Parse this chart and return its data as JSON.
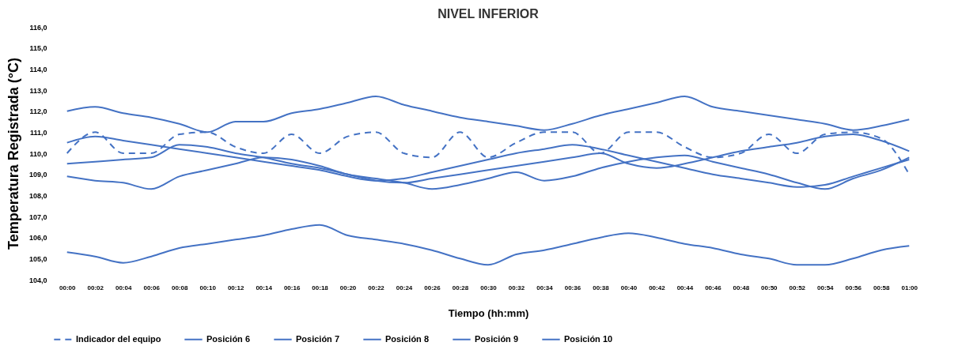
{
  "chart_data": {
    "type": "line",
    "title": "NIVEL INFERIOR",
    "xlabel": "Tiempo (hh:mm)",
    "ylabel": "Temperatura Registrada (°C)",
    "categories": [
      "00:00",
      "00:02",
      "00:04",
      "00:06",
      "00:08",
      "00:10",
      "00:12",
      "00:14",
      "00:16",
      "00:18",
      "00:20",
      "00:22",
      "00:24",
      "00:26",
      "00:28",
      "00:30",
      "00:32",
      "00:34",
      "00:36",
      "00:38",
      "00:40",
      "00:42",
      "00:44",
      "00:46",
      "00:48",
      "00:50",
      "00:52",
      "00:54",
      "00:56",
      "00:58",
      "01:00"
    ],
    "ylim": [
      104,
      116
    ],
    "yticks": [
      {
        "value": 104,
        "label": "104,0"
      },
      {
        "value": 105,
        "label": "105,0"
      },
      {
        "value": 106,
        "label": "106,0"
      },
      {
        "value": 107,
        "label": "107,0"
      },
      {
        "value": 108,
        "label": "108,0"
      },
      {
        "value": 109,
        "label": "109,0"
      },
      {
        "value": 110,
        "label": "110,0"
      },
      {
        "value": 111,
        "label": "111,0"
      },
      {
        "value": 112,
        "label": "112,0"
      },
      {
        "value": 113,
        "label": "113,0"
      },
      {
        "value": 114,
        "label": "114,0"
      },
      {
        "value": 115,
        "label": "115,0"
      },
      {
        "value": 116,
        "label": "116,0"
      }
    ],
    "grid": false,
    "legend": "bottom",
    "marker": "none",
    "series": [
      {
        "name": "Indicador del equipo",
        "color": "#4472c4",
        "line_style": "dashed",
        "values": [
          110.0,
          111.0,
          110.0,
          110.0,
          110.9,
          111.0,
          110.3,
          110.0,
          110.9,
          110.0,
          110.8,
          111.0,
          110.0,
          109.8,
          111.0,
          109.8,
          110.5,
          111.0,
          111.0,
          110.0,
          111.0,
          111.0,
          110.3,
          109.8,
          110.0,
          110.9,
          110.0,
          110.9,
          111.0,
          110.7,
          109.0
        ]
      },
      {
        "name": "Posición 6",
        "color": "#4472c4",
        "line_style": "solid",
        "values": [
          112.0,
          112.2,
          111.9,
          111.7,
          111.4,
          111.0,
          111.5,
          111.5,
          111.9,
          112.1,
          112.4,
          112.7,
          112.3,
          112.0,
          111.7,
          111.5,
          111.3,
          111.1,
          111.4,
          111.8,
          112.1,
          112.4,
          112.7,
          112.2,
          112.0,
          111.8,
          111.6,
          111.4,
          111.1,
          111.3,
          111.6
        ]
      },
      {
        "name": "Posición 7",
        "color": "#4472c4",
        "line_style": "solid",
        "values": [
          105.3,
          105.1,
          104.8,
          105.1,
          105.5,
          105.7,
          105.9,
          106.1,
          106.4,
          106.6,
          106.1,
          105.9,
          105.7,
          105.4,
          105.0,
          104.7,
          105.2,
          105.4,
          105.7,
          106.0,
          106.2,
          106.0,
          105.7,
          105.5,
          105.2,
          105.0,
          104.7,
          104.7,
          105.0,
          105.4,
          105.6
        ]
      },
      {
        "name": "Posición 8",
        "color": "#4472c4",
        "line_style": "solid",
        "values": [
          110.5,
          110.8,
          110.6,
          110.4,
          110.2,
          110.0,
          109.8,
          109.6,
          109.4,
          109.2,
          108.9,
          108.7,
          108.8,
          109.1,
          109.4,
          109.7,
          110.0,
          110.2,
          110.4,
          110.2,
          109.9,
          109.6,
          109.3,
          109.0,
          108.8,
          108.6,
          108.4,
          108.5,
          108.9,
          109.3,
          109.7
        ]
      },
      {
        "name": "Posición 9",
        "color": "#4472c4",
        "line_style": "solid",
        "values": [
          108.9,
          108.7,
          108.6,
          108.3,
          108.9,
          109.2,
          109.5,
          109.8,
          109.7,
          109.4,
          109.0,
          108.8,
          108.6,
          108.3,
          108.5,
          108.8,
          109.1,
          108.7,
          108.9,
          109.3,
          109.6,
          109.8,
          109.9,
          109.6,
          109.3,
          109.0,
          108.6,
          108.3,
          108.8,
          109.2,
          109.8
        ]
      },
      {
        "name": "Posición 10",
        "color": "#4472c4",
        "line_style": "solid",
        "values": [
          109.5,
          109.6,
          109.7,
          109.8,
          110.4,
          110.3,
          110.0,
          109.8,
          109.5,
          109.3,
          109.0,
          108.7,
          108.6,
          108.8,
          109.0,
          109.2,
          109.4,
          109.6,
          109.8,
          110.0,
          109.5,
          109.3,
          109.5,
          109.8,
          110.1,
          110.3,
          110.5,
          110.8,
          110.9,
          110.6,
          110.1
        ]
      }
    ]
  }
}
